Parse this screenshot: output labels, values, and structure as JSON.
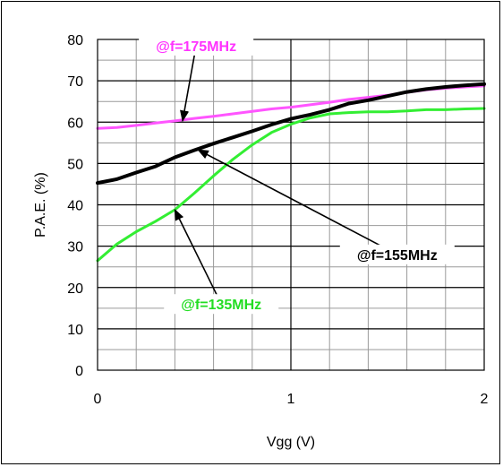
{
  "chart_data": {
    "type": "line",
    "title": "",
    "xlabel": "Vgg (V)",
    "ylabel": "P.A.E. (%)",
    "xlim": [
      0,
      2
    ],
    "ylim": [
      0,
      80
    ],
    "x_ticks": [
      "0",
      "1",
      "2"
    ],
    "y_ticks": [
      "0",
      "10",
      "20",
      "30",
      "40",
      "50",
      "60",
      "70",
      "80"
    ],
    "grid": true,
    "minor_x_step": 0.2,
    "series": [
      {
        "name": "@f=175MHz",
        "color": "#ff55ff",
        "x": [
          0,
          0.1,
          0.2,
          0.3,
          0.4,
          0.5,
          0.6,
          0.7,
          0.8,
          0.9,
          1.0,
          1.1,
          1.2,
          1.3,
          1.4,
          1.5,
          1.6,
          1.7,
          1.8,
          1.9,
          2.0
        ],
        "y": [
          58.5,
          58.7,
          59.2,
          59.8,
          60.3,
          60.9,
          61.4,
          62.0,
          62.6,
          63.2,
          63.6,
          64.2,
          64.8,
          65.5,
          66.0,
          66.5,
          67.2,
          67.8,
          68.2,
          68.5,
          68.8
        ]
      },
      {
        "name": "@f=155MHz",
        "color": "#000000",
        "x": [
          0,
          0.1,
          0.2,
          0.3,
          0.4,
          0.5,
          0.6,
          0.7,
          0.8,
          0.9,
          1.0,
          1.1,
          1.2,
          1.3,
          1.4,
          1.5,
          1.6,
          1.7,
          1.8,
          1.9,
          2.0
        ],
        "y": [
          45.3,
          46.2,
          47.8,
          49.3,
          51.5,
          53.2,
          54.8,
          56.3,
          57.8,
          59.4,
          60.8,
          61.8,
          63.0,
          64.5,
          65.3,
          66.3,
          67.3,
          68.0,
          68.5,
          68.9,
          69.2
        ]
      },
      {
        "name": "@f=135MHz",
        "color": "#33ee33",
        "x": [
          0,
          0.1,
          0.2,
          0.3,
          0.4,
          0.5,
          0.6,
          0.7,
          0.8,
          0.9,
          1.0,
          1.1,
          1.2,
          1.3,
          1.4,
          1.5,
          1.6,
          1.7,
          1.8,
          1.9,
          2.0
        ],
        "y": [
          26.5,
          30.5,
          33.5,
          36.0,
          38.8,
          42.8,
          47.0,
          51.0,
          54.5,
          57.5,
          59.5,
          61.0,
          62.0,
          62.3,
          62.5,
          62.5,
          62.7,
          63.0,
          63.0,
          63.2,
          63.3
        ]
      }
    ],
    "annotations": [
      {
        "text": "@f=175MHz",
        "color": "#ff33ff",
        "label_at": [
          0.51,
          78.5
        ],
        "arrow_to": [
          0.44,
          60.3
        ]
      },
      {
        "text": "@f=155MHz",
        "color": "#000000",
        "label_at": [
          1.55,
          28.0
        ],
        "arrow_to": [
          0.52,
          53.3
        ]
      },
      {
        "text": "@f=135MHz",
        "color": "#22dd22",
        "label_at": [
          0.64,
          16.0
        ],
        "arrow_to": [
          0.4,
          38.8
        ]
      }
    ]
  }
}
